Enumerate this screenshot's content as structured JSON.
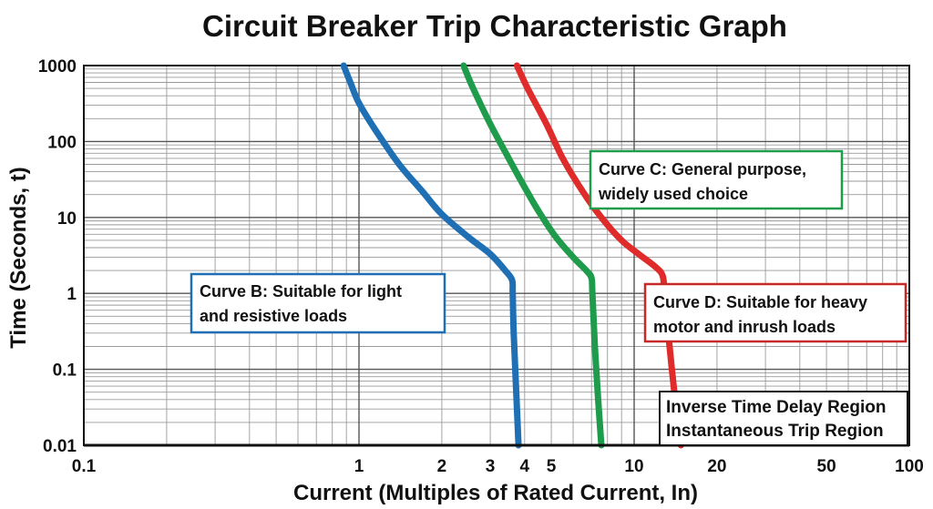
{
  "chart_data": {
    "type": "line",
    "title": "Circuit Breaker Trip Characteristic Graph",
    "xlabel": "Current (Multiples of Rated Current, In)",
    "ylabel": "Time (Seconds, t)",
    "x_scale": "log",
    "y_scale": "log",
    "xlim": [
      0.1,
      100
    ],
    "ylim": [
      0.01,
      1000
    ],
    "grid": true,
    "x_ticks": [
      {
        "value": 0.1,
        "label": "0.1"
      },
      {
        "value": 1,
        "label": "1"
      },
      {
        "value": 2,
        "label": "2"
      },
      {
        "value": 3,
        "label": "3"
      },
      {
        "value": 4,
        "label": "4"
      },
      {
        "value": 5,
        "label": "5"
      },
      {
        "value": 10,
        "label": "10"
      },
      {
        "value": 20,
        "label": "20"
      },
      {
        "value": 50,
        "label": "50"
      },
      {
        "value": 100,
        "label": "100"
      }
    ],
    "y_ticks": [
      {
        "value": 1000,
        "label": "1000"
      },
      {
        "value": 100,
        "label": "100"
      },
      {
        "value": 10,
        "label": "10"
      },
      {
        "value": 1,
        "label": "1"
      },
      {
        "value": 0.1,
        "label": "0.1"
      },
      {
        "value": 0.01,
        "label": "0.01"
      }
    ],
    "series": [
      {
        "color": "#1f6fb5",
        "points": [
          [
            0.88,
            1000
          ],
          [
            0.93,
            600
          ],
          [
            1.0,
            320
          ],
          [
            1.15,
            140
          ],
          [
            1.4,
            50
          ],
          [
            1.7,
            22
          ],
          [
            2.0,
            11
          ],
          [
            2.5,
            5.5
          ],
          [
            3.0,
            3.3
          ],
          [
            3.4,
            2.0
          ],
          [
            3.6,
            1.5
          ],
          [
            3.62,
            1.0
          ],
          [
            3.65,
            0.3
          ],
          [
            3.72,
            0.06
          ],
          [
            3.8,
            0.01
          ]
        ]
      },
      {
        "color": "#1f9b4c",
        "points": [
          [
            2.4,
            1000
          ],
          [
            2.6,
            500
          ],
          [
            3.0,
            170
          ],
          [
            3.5,
            60
          ],
          [
            4.0,
            25
          ],
          [
            4.5,
            12
          ],
          [
            5.2,
            5.5
          ],
          [
            6.0,
            3.0
          ],
          [
            6.7,
            2.0
          ],
          [
            7.0,
            1.6
          ],
          [
            7.05,
            1.0
          ],
          [
            7.2,
            0.2
          ],
          [
            7.4,
            0.04
          ],
          [
            7.6,
            0.01
          ]
        ]
      },
      {
        "color": "#e02b2b",
        "points": [
          [
            3.75,
            1000
          ],
          [
            4.1,
            500
          ],
          [
            4.8,
            170
          ],
          [
            5.5,
            60
          ],
          [
            6.5,
            22
          ],
          [
            7.6,
            10
          ],
          [
            9.0,
            5.0
          ],
          [
            10.5,
            3.2
          ],
          [
            12.0,
            2.2
          ],
          [
            12.7,
            1.7
          ],
          [
            12.9,
            1.0
          ],
          [
            13.3,
            0.3
          ],
          [
            14.0,
            0.05
          ],
          [
            14.8,
            0.01
          ]
        ]
      }
    ],
    "annotations": [
      {
        "text_lines": [
          "Curve B: Suitable for light",
          "and resistive loads"
        ],
        "border": "#1f6fb5"
      },
      {
        "text_lines": [
          "Curve C: General purpose,",
          "widely used choice"
        ],
        "border": "#1f9b4c"
      },
      {
        "text_lines": [
          "Curve D: Suitable for heavy",
          "motor and inrush loads"
        ],
        "border": "#c82828"
      },
      {
        "text_lines": [
          "Inverse Time Delay Region",
          "Instantaneous Trip Region"
        ],
        "border": "#111111"
      }
    ]
  }
}
